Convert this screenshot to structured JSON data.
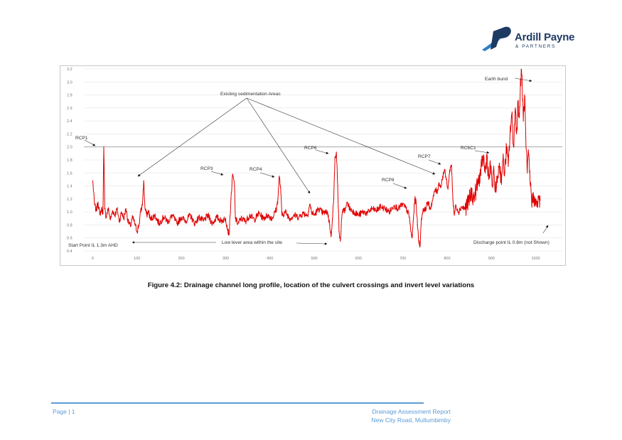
{
  "logo": {
    "name": "Ardill Payne",
    "sub": "& PARTNERS",
    "colors": {
      "dark": "#1d3a63",
      "accent": "#2e7dc2"
    }
  },
  "chart_data": {
    "type": "line",
    "title": "",
    "xlabel": "",
    "ylabel": "",
    "xlim": [
      -20,
      1060
    ],
    "ylim": [
      0.4,
      3.2
    ],
    "grid": true,
    "reference_line": 2.0,
    "x_ticks": [
      0,
      100,
      200,
      300,
      400,
      500,
      600,
      700,
      800,
      900,
      1000
    ],
    "y_ticks": [
      0.4,
      0.6,
      0.8,
      1.0,
      1.2,
      1.4,
      1.6,
      1.8,
      2.0,
      2.2,
      2.4,
      2.6,
      2.8,
      3.0,
      3.2
    ],
    "series": [
      {
        "color": "#e00000",
        "points": [
          [
            0,
            1.48
          ],
          [
            4,
            1.12
          ],
          [
            8,
            1.02
          ],
          [
            12,
            1.15
          ],
          [
            16,
            0.96
          ],
          [
            20,
            1.05
          ],
          [
            23,
            0.98
          ],
          [
            25,
            2.0
          ],
          [
            27,
            1.05
          ],
          [
            30,
            0.92
          ],
          [
            35,
            1.05
          ],
          [
            40,
            0.88
          ],
          [
            45,
            1.02
          ],
          [
            50,
            0.95
          ],
          [
            55,
            1.05
          ],
          [
            60,
            0.85
          ],
          [
            65,
            1.0
          ],
          [
            70,
            0.9
          ],
          [
            75,
            1.05
          ],
          [
            80,
            0.85
          ],
          [
            85,
            0.78
          ],
          [
            90,
            0.92
          ],
          [
            95,
            0.82
          ],
          [
            100,
            0.7
          ],
          [
            105,
            0.82
          ],
          [
            108,
            1.0
          ],
          [
            112,
            1.1
          ],
          [
            115,
            1.48
          ],
          [
            118,
            1.05
          ],
          [
            122,
            0.95
          ],
          [
            126,
            1.02
          ],
          [
            130,
            0.88
          ],
          [
            140,
            0.95
          ],
          [
            150,
            0.82
          ],
          [
            160,
            0.92
          ],
          [
            170,
            0.85
          ],
          [
            180,
            0.95
          ],
          [
            190,
            0.82
          ],
          [
            200,
            0.92
          ],
          [
            210,
            0.86
          ],
          [
            220,
            0.95
          ],
          [
            230,
            0.82
          ],
          [
            240,
            0.92
          ],
          [
            250,
            0.86
          ],
          [
            260,
            0.95
          ],
          [
            270,
            0.82
          ],
          [
            280,
            0.92
          ],
          [
            290,
            0.86
          ],
          [
            300,
            0.9
          ],
          [
            305,
            0.72
          ],
          [
            308,
            0.65
          ],
          [
            312,
            1.2
          ],
          [
            316,
            1.58
          ],
          [
            320,
            1.4
          ],
          [
            322,
            0.9
          ],
          [
            328,
            0.82
          ],
          [
            335,
            0.9
          ],
          [
            345,
            0.86
          ],
          [
            355,
            0.95
          ],
          [
            365,
            0.88
          ],
          [
            375,
            0.98
          ],
          [
            385,
            0.9
          ],
          [
            395,
            0.95
          ],
          [
            405,
            0.9
          ],
          [
            415,
            1.05
          ],
          [
            418,
            1.2
          ],
          [
            421,
            1.55
          ],
          [
            424,
            1.38
          ],
          [
            427,
            0.95
          ],
          [
            435,
            1.0
          ],
          [
            445,
            0.9
          ],
          [
            455,
            0.95
          ],
          [
            465,
            0.92
          ],
          [
            475,
            0.98
          ],
          [
            485,
            0.95
          ],
          [
            490,
            1.12
          ],
          [
            494,
            1.0
          ],
          [
            500,
            0.95
          ],
          [
            510,
            1.05
          ],
          [
            520,
            0.98
          ],
          [
            530,
            1.0
          ],
          [
            535,
            0.8
          ],
          [
            538,
            0.62
          ],
          [
            541,
            0.9
          ],
          [
            544,
            1.2
          ],
          [
            547,
            1.85
          ],
          [
            550,
            1.92
          ],
          [
            553,
            1.4
          ],
          [
            556,
            0.7
          ],
          [
            559,
            0.55
          ],
          [
            562,
            0.9
          ],
          [
            566,
            1.05
          ],
          [
            570,
            1.02
          ],
          [
            575,
            1.15
          ],
          [
            580,
            1.05
          ],
          [
            590,
            1.0
          ],
          [
            600,
            0.95
          ],
          [
            610,
            1.0
          ],
          [
            620,
            0.98
          ],
          [
            630,
            1.05
          ],
          [
            640,
            1.02
          ],
          [
            650,
            1.08
          ],
          [
            660,
            1.05
          ],
          [
            670,
            1.0
          ],
          [
            680,
            1.1
          ],
          [
            690,
            1.05
          ],
          [
            700,
            1.12
          ],
          [
            710,
            1.02
          ],
          [
            715,
            0.92
          ],
          [
            718,
            0.7
          ],
          [
            721,
            0.6
          ],
          [
            724,
            0.9
          ],
          [
            727,
            1.2
          ],
          [
            730,
            1.15
          ],
          [
            733,
            0.8
          ],
          [
            736,
            0.55
          ],
          [
            739,
            0.48
          ],
          [
            742,
            0.9
          ],
          [
            746,
            1.05
          ],
          [
            750,
            1.02
          ],
          [
            756,
            1.15
          ],
          [
            762,
            1.05
          ],
          [
            768,
            1.2
          ],
          [
            773,
            1.35
          ],
          [
            777,
            1.3
          ],
          [
            782,
            1.45
          ],
          [
            786,
            1.38
          ],
          [
            790,
            1.55
          ],
          [
            794,
            1.65
          ],
          [
            798,
            1.5
          ],
          [
            802,
            1.35
          ],
          [
            806,
            1.65
          ],
          [
            810,
            1.72
          ],
          [
            813,
            1.2
          ],
          [
            816,
            0.95
          ],
          [
            820,
            1.1
          ],
          [
            826,
            1.0
          ],
          [
            832,
            1.08
          ],
          [
            840,
            1.05
          ],
          [
            848,
            1.15
          ],
          [
            855,
            1.3
          ],
          [
            860,
            1.2
          ],
          [
            866,
            1.35
          ],
          [
            872,
            1.5
          ],
          [
            878,
            1.7
          ],
          [
            882,
            1.85
          ],
          [
            886,
            1.6
          ],
          [
            890,
            1.88
          ],
          [
            894,
            1.5
          ],
          [
            898,
            1.7
          ],
          [
            902,
            1.4
          ],
          [
            906,
            1.6
          ],
          [
            910,
            1.3
          ],
          [
            914,
            1.55
          ],
          [
            918,
            1.75
          ],
          [
            922,
            1.5
          ],
          [
            926,
            1.8
          ],
          [
            930,
            1.6
          ],
          [
            934,
            2.0
          ],
          [
            938,
            1.7
          ],
          [
            942,
            2.2
          ],
          [
            946,
            2.5
          ],
          [
            950,
            2.0
          ],
          [
            954,
            2.6
          ],
          [
            957,
            2.2
          ],
          [
            960,
            2.7
          ],
          [
            963,
            2.45
          ],
          [
            966,
            3.05
          ],
          [
            969,
            3.1
          ],
          [
            972,
            2.4
          ],
          [
            975,
            2.8
          ],
          [
            978,
            2.0
          ],
          [
            981,
            1.6
          ],
          [
            984,
            1.9
          ],
          [
            988,
            1.4
          ],
          [
            992,
            1.15
          ],
          [
            996,
            1.25
          ],
          [
            1000,
            1.1
          ],
          [
            1005,
            1.15
          ],
          [
            1010,
            1.18
          ]
        ]
      }
    ],
    "annotations": {
      "earth_bund": "Earth bund",
      "sedimentation": "Existing sedimentation Areas",
      "rcp1": "RCP1",
      "rcp3": "RCP3",
      "rcp4": "RCP4",
      "rcp6": "RCP6",
      "rcp7": "RCP7",
      "rcp8": "RCP8",
      "rc6c1": "RC6C1",
      "start_point": "Start Point IL 1.3m AHD",
      "low_level": "Low lever area within the site",
      "discharge": "Discharge point IL 0.8m (not Shown)"
    }
  },
  "caption": "Figure 4.2: Drainage channel long profile, location of the culvert crossings and invert level variations",
  "footer": {
    "page": "Page | 1",
    "report": "Drainage Assessment Report",
    "address": "New City Road, Mullumbimby"
  }
}
